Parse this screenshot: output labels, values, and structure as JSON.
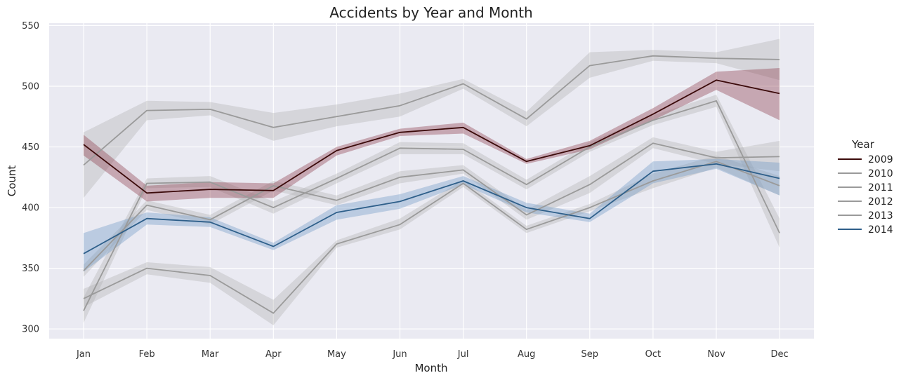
{
  "chart_data": {
    "type": "line",
    "title": "Accidents by Year and Month",
    "xlabel": "Month",
    "ylabel": "Count",
    "ylim": [
      292,
      552
    ],
    "yticks": [
      300,
      350,
      400,
      450,
      500,
      550
    ],
    "grid": true,
    "legend": {
      "title": "Year",
      "position": "right"
    },
    "categories": [
      "Jan",
      "Feb",
      "Mar",
      "Apr",
      "May",
      "Jun",
      "Jul",
      "Aug",
      "Sep",
      "Oct",
      "Nov",
      "Dec"
    ],
    "series": [
      {
        "name": "2009",
        "color": "#3b0a0a",
        "band_color": "#8b3a4a",
        "values": [
          452,
          412,
          415,
          414,
          447,
          462,
          466,
          438,
          451,
          477,
          505,
          494
        ],
        "lower": [
          443,
          405,
          408,
          408,
          443,
          459,
          461,
          436,
          448,
          472,
          497,
          472
        ],
        "upper": [
          460,
          418,
          421,
          420,
          450,
          465,
          470,
          440,
          455,
          482,
          512,
          515
        ]
      },
      {
        "name": "2010",
        "color": "#9a9a9a",
        "band_color": "#b0b0b0",
        "values": [
          435,
          480,
          481,
          466,
          475,
          484,
          502,
          473,
          517,
          525,
          523,
          522
        ],
        "lower": [
          408,
          472,
          476,
          455,
          467,
          475,
          498,
          467,
          507,
          521,
          519,
          505
        ],
        "upper": [
          462,
          488,
          487,
          478,
          485,
          494,
          506,
          479,
          528,
          530,
          528,
          539
        ]
      },
      {
        "name": "2011",
        "color": "#9a9a9a",
        "band_color": "#b0b0b0",
        "values": [
          348,
          402,
          390,
          418,
          406,
          425,
          431,
          394,
          419,
          453,
          441,
          442
        ],
        "lower": [
          343,
          398,
          386,
          414,
          402,
          420,
          428,
          390,
          412,
          449,
          436,
          430
        ],
        "upper": [
          353,
          406,
          394,
          422,
          410,
          430,
          435,
          398,
          426,
          458,
          446,
          455
        ]
      },
      {
        "name": "2012",
        "color": "#9a9a9a",
        "band_color": "#b0b0b0",
        "values": [
          325,
          350,
          344,
          313,
          370,
          386,
          420,
          382,
          400,
          422,
          438,
          418
        ],
        "lower": [
          318,
          345,
          338,
          303,
          367,
          382,
          417,
          379,
          397,
          416,
          433,
          410
        ],
        "upper": [
          333,
          355,
          351,
          324,
          373,
          391,
          423,
          385,
          403,
          428,
          443,
          426
        ]
      },
      {
        "name": "2013",
        "color": "#9a9a9a",
        "band_color": "#b0b0b0",
        "values": [
          315,
          420,
          421,
          400,
          424,
          449,
          448,
          419,
          450,
          472,
          488,
          379
        ],
        "lower": [
          305,
          416,
          417,
          395,
          420,
          444,
          444,
          415,
          446,
          468,
          483,
          367
        ],
        "upper": [
          326,
          424,
          426,
          405,
          428,
          454,
          453,
          423,
          454,
          476,
          493,
          391
        ]
      },
      {
        "name": "2014",
        "color": "#2e5f8a",
        "band_color": "#6f98c4",
        "values": [
          362,
          391,
          388,
          368,
          396,
          405,
          422,
          400,
          391,
          430,
          436,
          424
        ],
        "lower": [
          347,
          386,
          384,
          365,
          390,
          399,
          419,
          396,
          388,
          420,
          432,
          410
        ],
        "upper": [
          379,
          396,
          392,
          371,
          402,
          411,
          426,
          404,
          395,
          438,
          440,
          437
        ]
      }
    ]
  }
}
